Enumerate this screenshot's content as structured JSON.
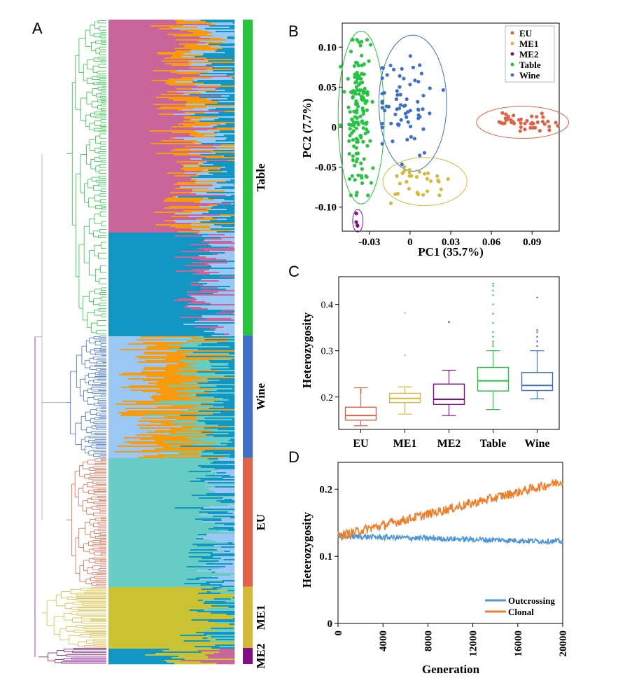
{
  "panels": {
    "A": "A",
    "B": "B",
    "C": "C",
    "D": "D"
  },
  "colors": {
    "Table": "#27c341",
    "Wine": "#3f6fc6",
    "EU": "#de6348",
    "ME1": "#d7b93a",
    "ME2": "#800f88",
    "pink": "#c9659a",
    "blue": "#1297c4",
    "lightblue": "#9ac7f4",
    "orange": "#f79a0c",
    "teal": "#66ccc4",
    "olive": "#c9c232",
    "outcross": "#4d96d6",
    "clonal": "#ee7f2c",
    "tree_grey": "#aaaaaa"
  },
  "tree_panel": {
    "groups": [
      {
        "name": "Table",
        "label": "Table",
        "fraction": 0.49
      },
      {
        "name": "Wine",
        "label": "Wine",
        "fraction": 0.19
      },
      {
        "name": "EU",
        "label": "EU",
        "fraction": 0.2
      },
      {
        "name": "ME1",
        "label": "ME1",
        "fraction": 0.095
      },
      {
        "name": "ME2",
        "label": "ME2",
        "fraction": 0.025
      }
    ]
  },
  "chart_data": [
    {
      "id": "pca",
      "type": "scatter",
      "title": "",
      "xlabel": "PC1 (35.7%)",
      "ylabel": "PC2 (7.7%)",
      "xlim": [
        -0.05,
        0.11
      ],
      "ylim": [
        -0.13,
        0.13
      ],
      "xticks": [
        -0.03,
        0,
        0.03,
        0.06,
        0.09
      ],
      "xtick_labels": [
        "-0.03",
        "0",
        "0.03",
        "0.06",
        "0.09"
      ],
      "yticks": [
        0.1,
        0.05,
        0,
        -0.05,
        -0.1
      ],
      "ytick_labels": [
        "0.10",
        "0.05",
        "0",
        "-0.05",
        "-0.10"
      ],
      "legend": [
        "EU",
        "ME1",
        "ME2",
        "Table",
        "Wine"
      ],
      "legend_position": "top-right",
      "series": [
        {
          "name": "EU",
          "cx": 0.084,
          "cy": 0.005,
          "sx": 0.012,
          "sy": 0.005,
          "n": 45,
          "ellipse": [
            0.083,
            0.006,
            0.034,
            0.02
          ]
        },
        {
          "name": "ME1",
          "cx": 0.01,
          "cy": -0.07,
          "sx": 0.014,
          "sy": 0.012,
          "n": 30,
          "ellipse": [
            0.011,
            -0.068,
            0.031,
            0.03
          ]
        },
        {
          "name": "ME2",
          "cx": -0.0385,
          "cy": -0.119,
          "sx": 0.0012,
          "sy": 0.004,
          "n": 4,
          "ellipse": [
            -0.0385,
            -0.117,
            0.0038,
            0.014
          ]
        },
        {
          "name": "Table",
          "cx": -0.038,
          "cy": 0.02,
          "sx": 0.005,
          "sy": 0.045,
          "n": 150,
          "ellipse": [
            -0.036,
            0.012,
            0.017,
            0.108
          ]
        },
        {
          "name": "Wine",
          "cx": -0.004,
          "cy": 0.025,
          "sx": 0.013,
          "sy": 0.03,
          "n": 70,
          "ellipse": [
            0.002,
            0.03,
            0.025,
            0.085
          ]
        }
      ]
    },
    {
      "id": "heterozygosity-box",
      "type": "box",
      "ylabel": "Heterozygosity",
      "ylim": [
        0.13,
        0.46
      ],
      "yticks": [
        0.2,
        0.3,
        0.4
      ],
      "ytick_labels": [
        "0.2",
        "0.3",
        "0.4"
      ],
      "categories": [
        "EU",
        "ME1",
        "ME2",
        "Table",
        "Wine"
      ],
      "boxes": [
        {
          "q1": 0.15,
          "median": 0.16,
          "q3": 0.178,
          "low": 0.138,
          "high": 0.22,
          "outliers": [
            0.21,
            0.215
          ]
        },
        {
          "q1": 0.188,
          "median": 0.197,
          "q3": 0.208,
          "low": 0.163,
          "high": 0.222,
          "outliers": [
            0.29,
            0.382
          ]
        },
        {
          "q1": 0.184,
          "median": 0.195,
          "q3": 0.228,
          "low": 0.16,
          "high": 0.258,
          "outliers": [
            0.362
          ]
        },
        {
          "q1": 0.213,
          "median": 0.235,
          "q3": 0.264,
          "low": 0.173,
          "high": 0.3,
          "outliers": [
            0.31,
            0.315,
            0.32,
            0.33,
            0.34,
            0.36,
            0.38,
            0.4,
            0.42,
            0.43,
            0.44,
            0.445
          ]
        },
        {
          "q1": 0.214,
          "median": 0.225,
          "q3": 0.253,
          "low": 0.196,
          "high": 0.3,
          "outliers": [
            0.31,
            0.32,
            0.33,
            0.34,
            0.345,
            0.415
          ]
        }
      ]
    },
    {
      "id": "heterozygosity-simulation",
      "type": "line",
      "xlabel": "Generation",
      "ylabel": "Heterozygosity",
      "xlim": [
        0,
        20000
      ],
      "ylim": [
        0,
        0.24
      ],
      "xticks": [
        0,
        4000,
        8000,
        12000,
        16000,
        20000
      ],
      "xtick_labels": [
        "0",
        "4000",
        "8000",
        "12000",
        "16000",
        "20000"
      ],
      "yticks": [
        0,
        0.1,
        0.2
      ],
      "ytick_labels": [
        "0",
        "0.1",
        "0.2"
      ],
      "legend_position": "bottom-right",
      "series": [
        {
          "name": "Outcrossing",
          "start": 0.13,
          "end": 0.122
        },
        {
          "name": "Clonal",
          "start": 0.13,
          "end": 0.212
        }
      ]
    }
  ]
}
